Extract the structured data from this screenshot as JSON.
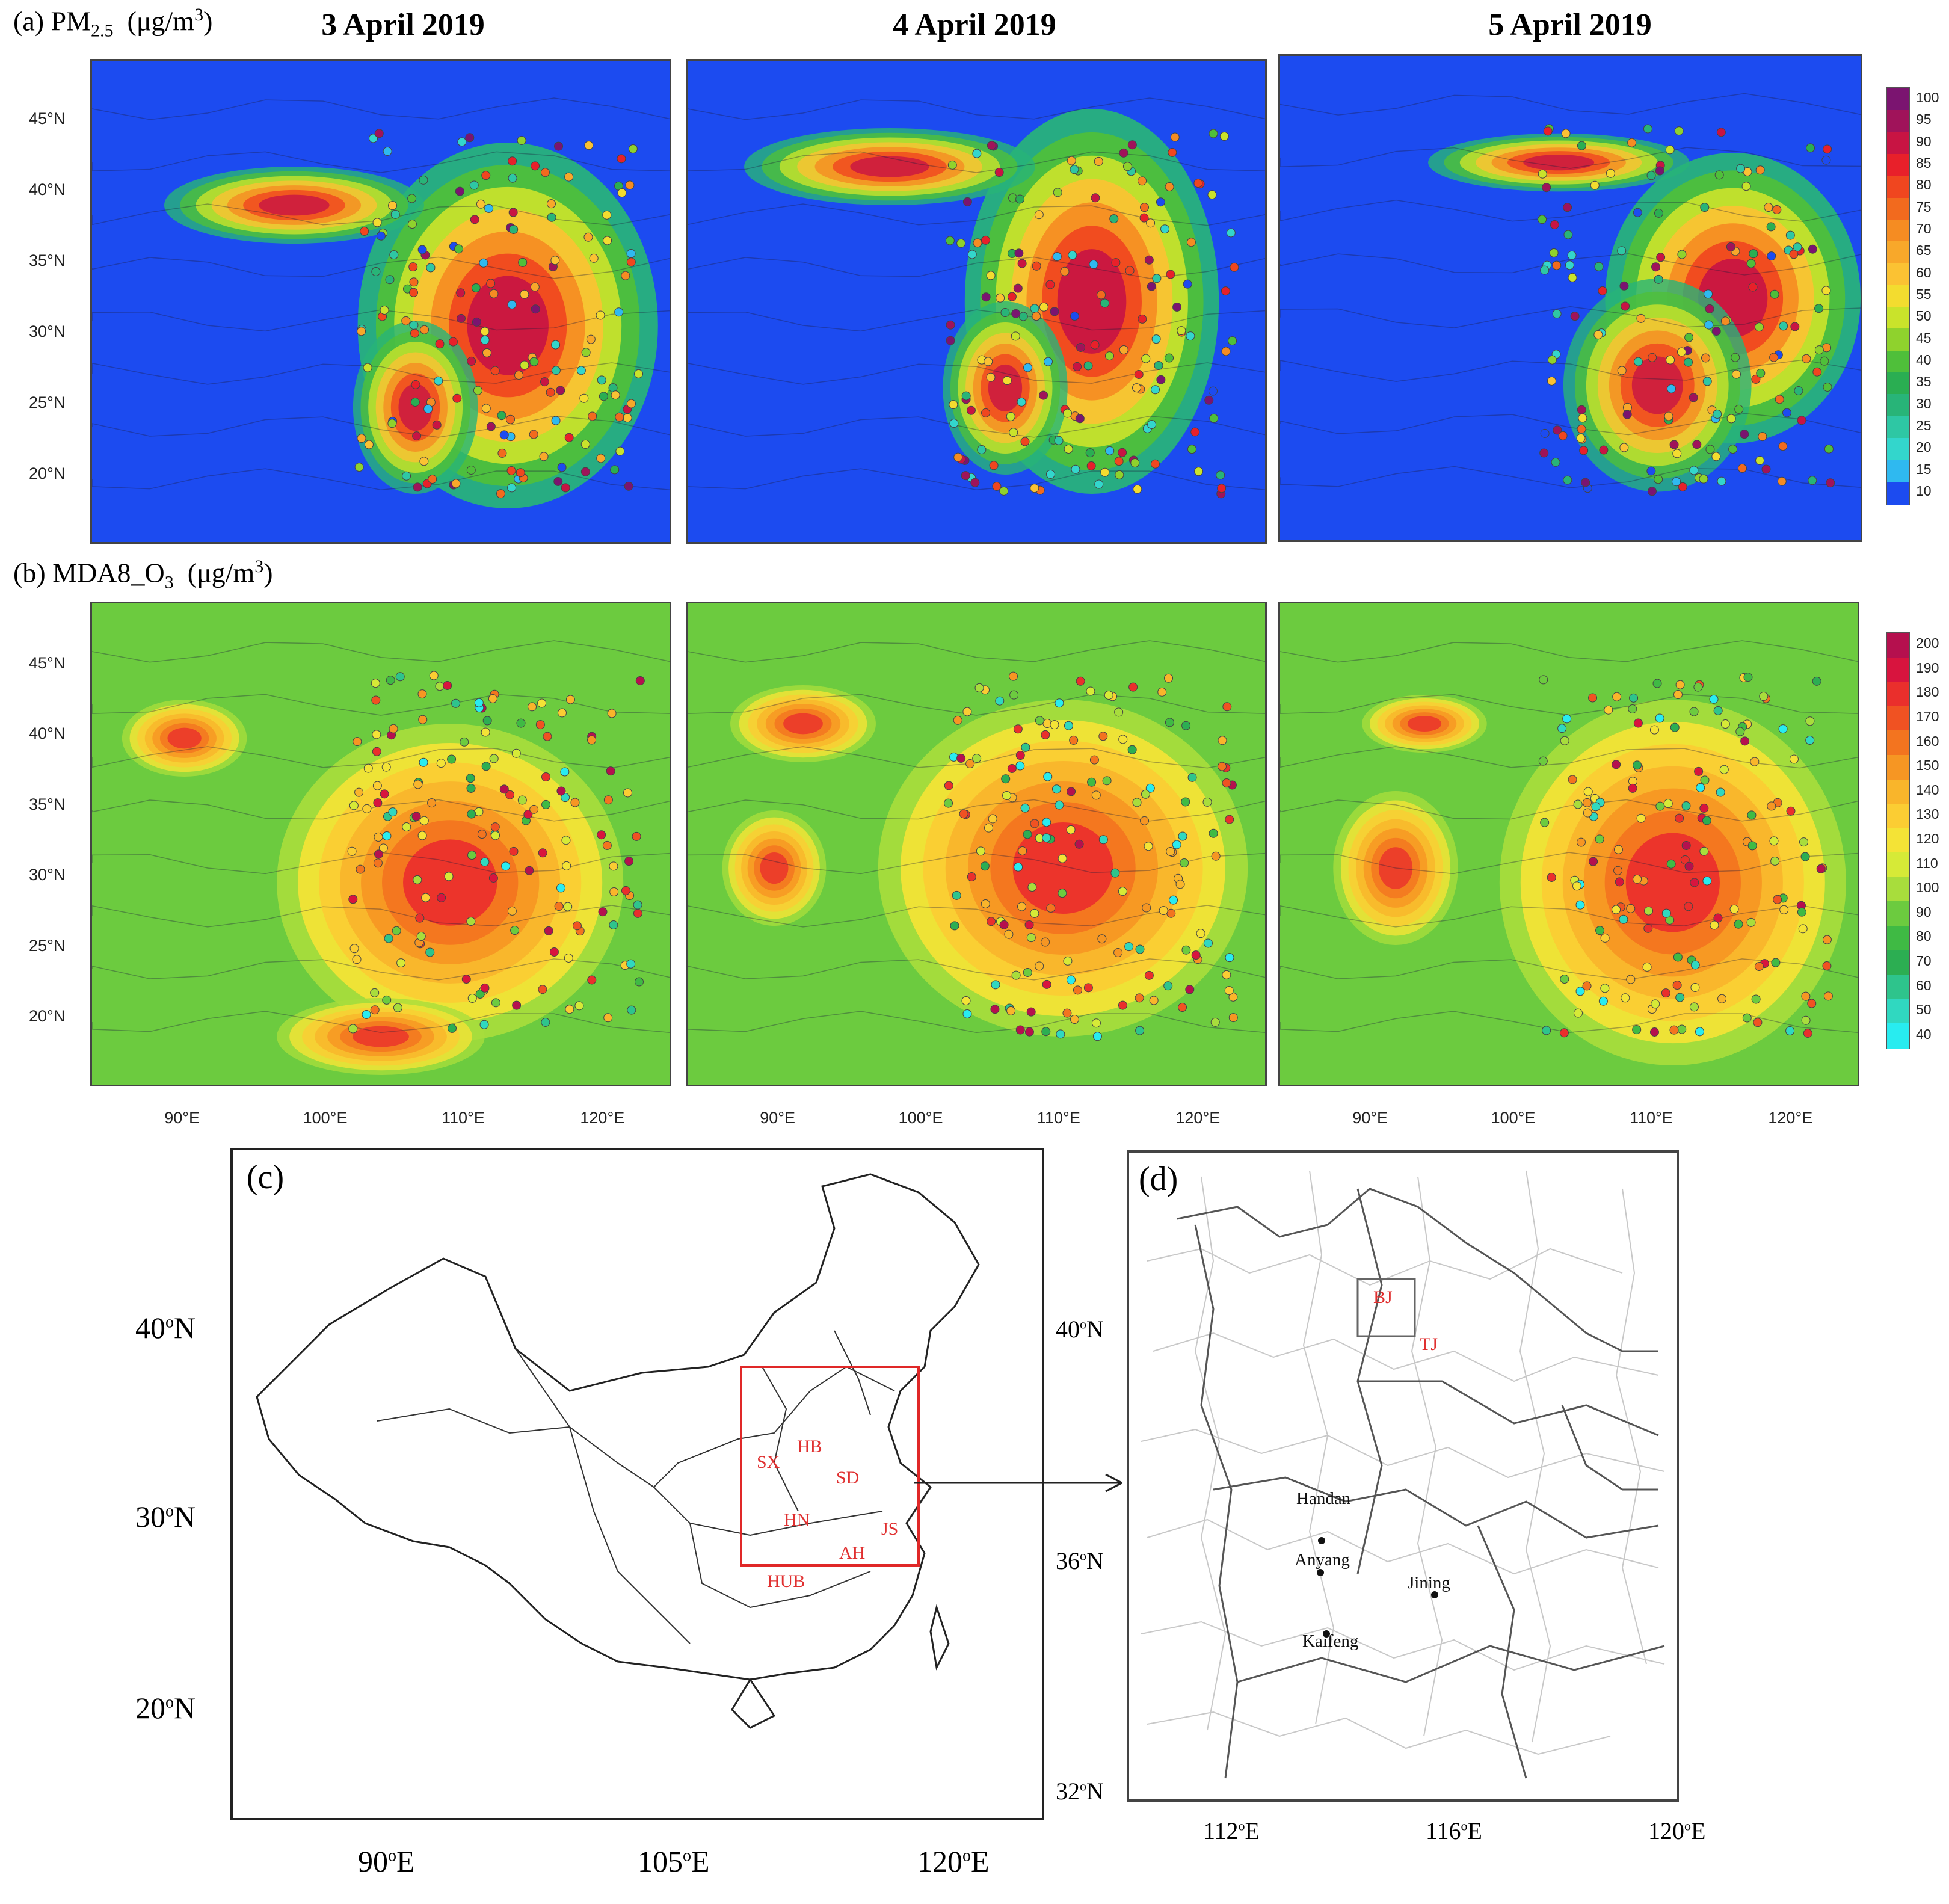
{
  "row_a": {
    "label_prefix": "(a) PM",
    "label_sub": "2.5",
    "label_unit_pre": "(μg/m",
    "label_unit_sup": "3",
    "label_unit_post": ")"
  },
  "row_b": {
    "label_prefix": "(b) MDA8_O",
    "label_sub": "3",
    "label_unit_pre": "(μg/m",
    "label_unit_sup": "3",
    "label_unit_post": ")"
  },
  "dates": [
    "3 April 2019",
    "4 April 2019",
    "5 April 2019"
  ],
  "lat_ticks": [
    "45°N",
    "40°N",
    "35°N",
    "30°N",
    "25°N",
    "20°N"
  ],
  "lon_ticks": [
    "90°E",
    "100°E",
    "110°E",
    "120°E"
  ],
  "pm_colorbar": {
    "levels": [
      "100",
      "95",
      "90",
      "85",
      "80",
      "75",
      "70",
      "65",
      "60",
      "55",
      "50",
      "45",
      "40",
      "35",
      "30",
      "25",
      "20",
      "15",
      "10"
    ],
    "colors": [
      "#7b1470",
      "#a0135a",
      "#c81443",
      "#e8202a",
      "#f0461f",
      "#f26a1e",
      "#f58c22",
      "#f8a82a",
      "#fbc233",
      "#f3dc2f",
      "#c9e32b",
      "#8fd22d",
      "#4fbf3a",
      "#2aae52",
      "#28b478",
      "#2ec7a4",
      "#33d6cc",
      "#2fb9f0",
      "#1c4bf0"
    ]
  },
  "o3_colorbar": {
    "levels": [
      "200",
      "190",
      "180",
      "170",
      "160",
      "150",
      "140",
      "130",
      "120",
      "110",
      "100",
      "90",
      "80",
      "70",
      "60",
      "50",
      "40"
    ],
    "colors": [
      "#b5104e",
      "#d8143e",
      "#ea2f2c",
      "#f05222",
      "#f3741f",
      "#f69623",
      "#f9b52b",
      "#fbcd33",
      "#f4e336",
      "#d6ea37",
      "#a8dd3c",
      "#6ccb3f",
      "#3fba44",
      "#2cae52",
      "#2ec48c",
      "#30d8c0",
      "#28ecf0"
    ]
  },
  "panel_c": {
    "label": "(c)",
    "lat_ticks": [
      "40",
      "30",
      "20"
    ],
    "lat_suffix": "N",
    "deg": "o",
    "lon_ticks": [
      "90",
      "105",
      "120"
    ],
    "lon_suffix": "E",
    "regions": [
      "HB",
      "SX",
      "SD",
      "HN",
      "JS",
      "AH",
      "HUB"
    ]
  },
  "panel_d": {
    "label": "(d)",
    "lat_ticks": [
      "40",
      "36",
      "32"
    ],
    "lat_suffix": "N",
    "deg": "o",
    "lon_ticks": [
      "112",
      "116",
      "120"
    ],
    "lon_suffix": "E",
    "regions": [
      "BJ",
      "TJ"
    ],
    "cities": [
      "Handan",
      "Anyang",
      "Jining",
      "Kaifeng"
    ]
  }
}
